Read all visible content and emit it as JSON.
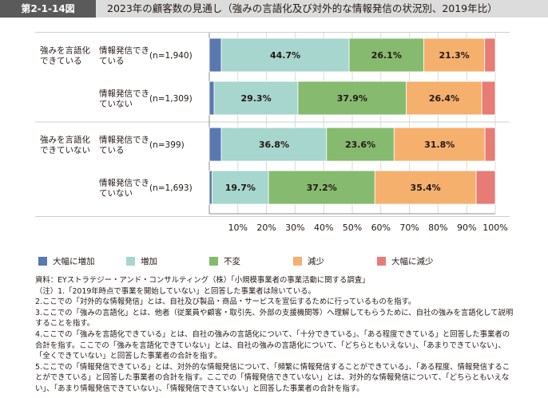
{
  "header": {
    "figure_number": "第2-1-14図",
    "title": "2023年の顧客数の見通し（強みの言語化及び対外的な情報発信の状況別、2019年比）"
  },
  "colors": {
    "header_bg": "#dcdcdc",
    "figure_number_bg": "#5a5a5a",
    "series": [
      "#5a78b0",
      "#a6d6ce",
      "#86ba6e",
      "#f5b06e",
      "#e77b76"
    ]
  },
  "chart_data": {
    "type": "bar",
    "orientation": "horizontal",
    "stacked": true,
    "percent": true,
    "groups": [
      {
        "label": "強みを言語化できている",
        "rows": [
          0,
          1
        ]
      },
      {
        "label": "強みを言語化できていない",
        "rows": [
          2,
          3
        ]
      }
    ],
    "categories": [
      {
        "label": "情報発信できている",
        "n": "(n=1,940)"
      },
      {
        "label": "情報発信できていない",
        "n": "(n=1,309)"
      },
      {
        "label": "情報発信できている",
        "n": "(n=399)"
      },
      {
        "label": "情報発信できていない",
        "n": "(n=1,693)"
      }
    ],
    "series": [
      {
        "name": "大幅に増加",
        "values": [
          4.2,
          1.7,
          4.2,
          1.0
        ],
        "labels": [
          "",
          "",
          "",
          ""
        ]
      },
      {
        "name": "増加",
        "values": [
          44.7,
          29.3,
          36.8,
          19.7
        ],
        "labels": [
          "44.7%",
          "29.3%",
          "36.8%",
          "19.7%"
        ]
      },
      {
        "name": "不変",
        "values": [
          26.1,
          37.9,
          23.6,
          37.2
        ],
        "labels": [
          "26.1%",
          "37.9%",
          "23.6%",
          "37.2%"
        ]
      },
      {
        "name": "減少",
        "values": [
          21.3,
          26.4,
          31.8,
          35.4
        ],
        "labels": [
          "21.3%",
          "26.4%",
          "31.8%",
          "35.4%"
        ]
      },
      {
        "name": "大幅に減少",
        "values": [
          3.7,
          4.7,
          3.6,
          6.7
        ],
        "labels": [
          "",
          "",
          "",
          ""
        ]
      }
    ],
    "xlim": [
      0,
      100
    ],
    "xticks": [
      "10%",
      "20%",
      "30%",
      "40%",
      "50%",
      "60%",
      "70%",
      "80%",
      "90%",
      "100%"
    ],
    "grid": true,
    "legend_position": "bottom"
  },
  "notes": [
    "資料：EYストラテジー・アンド・コンサルティング（株）「小規模事業者の事業活動に関する調査」",
    "（注）1.「2019年時点で事業を開始していない」と回答した事業者は除いている。",
    "2.ここでの「対外的な情報発信」とは、自社及び製品・商品・サービスを宣伝するために行っているものを指す。",
    "3.ここでの「強みの言語化」とは、他者（従業員や顧客・取引先、外部の支援機関等）へ理解してもらうために、自社の強みを言語化して説明することを指す。",
    "4.ここでの「強みを言語化できている」とは、自社の強みの言語化について、「十分できている」、「ある程度できている」と回答した事業者の合計を指す。ここでの「強みを言語化できていない」とは、自社の強みの言語化について、「どちらともいえない」、「あまりできていない」、「全くできていない」と回答した事業者の合計を指す。",
    "5.ここでの「情報発信できている」とは、対外的な情報発信について、「頻繁に情報発信することができている」、「ある程度、情報発信することができている」と回答した事業者の合計を指す。ここでの「情報発信できていない」とは、対外的な情報発信について、「どちらともいえない」、「あまり情報発信できていない」、「情報発信できていない」と回答した事業者の合計を指す。"
  ]
}
